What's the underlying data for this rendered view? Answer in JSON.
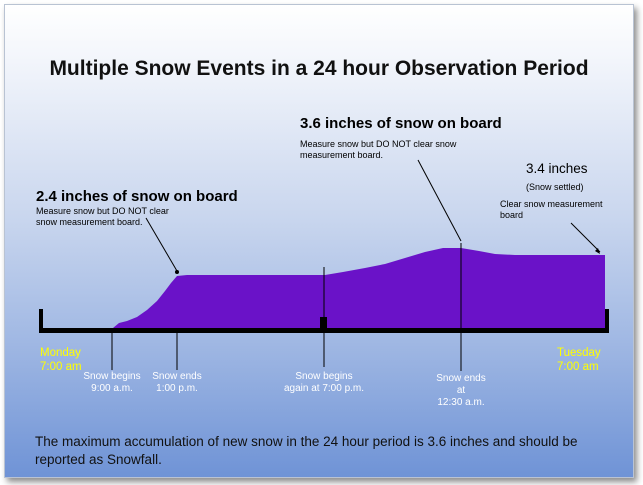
{
  "title": "Multiple Snow Events in a 24 hour Observation Period",
  "colors": {
    "snow": "#6a12c8",
    "axis": "#000000",
    "day_label": "#ffff00",
    "event_label": "#ffffff"
  },
  "callouts": {
    "first": {
      "amount": "2.4 inches of snow on board",
      "note": "Measure snow but DO NOT clear snow measurement board."
    },
    "second": {
      "amount": "3.6 inches of snow on board",
      "note": "Measure snow but DO NOT clear snow measurement board."
    },
    "third": {
      "amount": "3.4 inches",
      "sub": "(Snow settled)",
      "note": "Clear snow measurement board"
    }
  },
  "timeline": {
    "start_day": "Monday",
    "start_time": "7:00 am",
    "end_day": "Tuesday",
    "end_time": "7:00 am",
    "events": [
      {
        "line1": "Snow begins",
        "line2": "9:00 a.m."
      },
      {
        "line1": "Snow ends",
        "line2": "1:00 p.m."
      },
      {
        "line1": "Snow begins",
        "line2": "again at 7:00 p.m."
      },
      {
        "line1": "Snow ends at",
        "line2": "12:30 a.m."
      }
    ]
  },
  "footer_note": "The maximum accumulation of new snow in the 24 hour period  is 3.6 inches and should be reported as Snowfall."
}
